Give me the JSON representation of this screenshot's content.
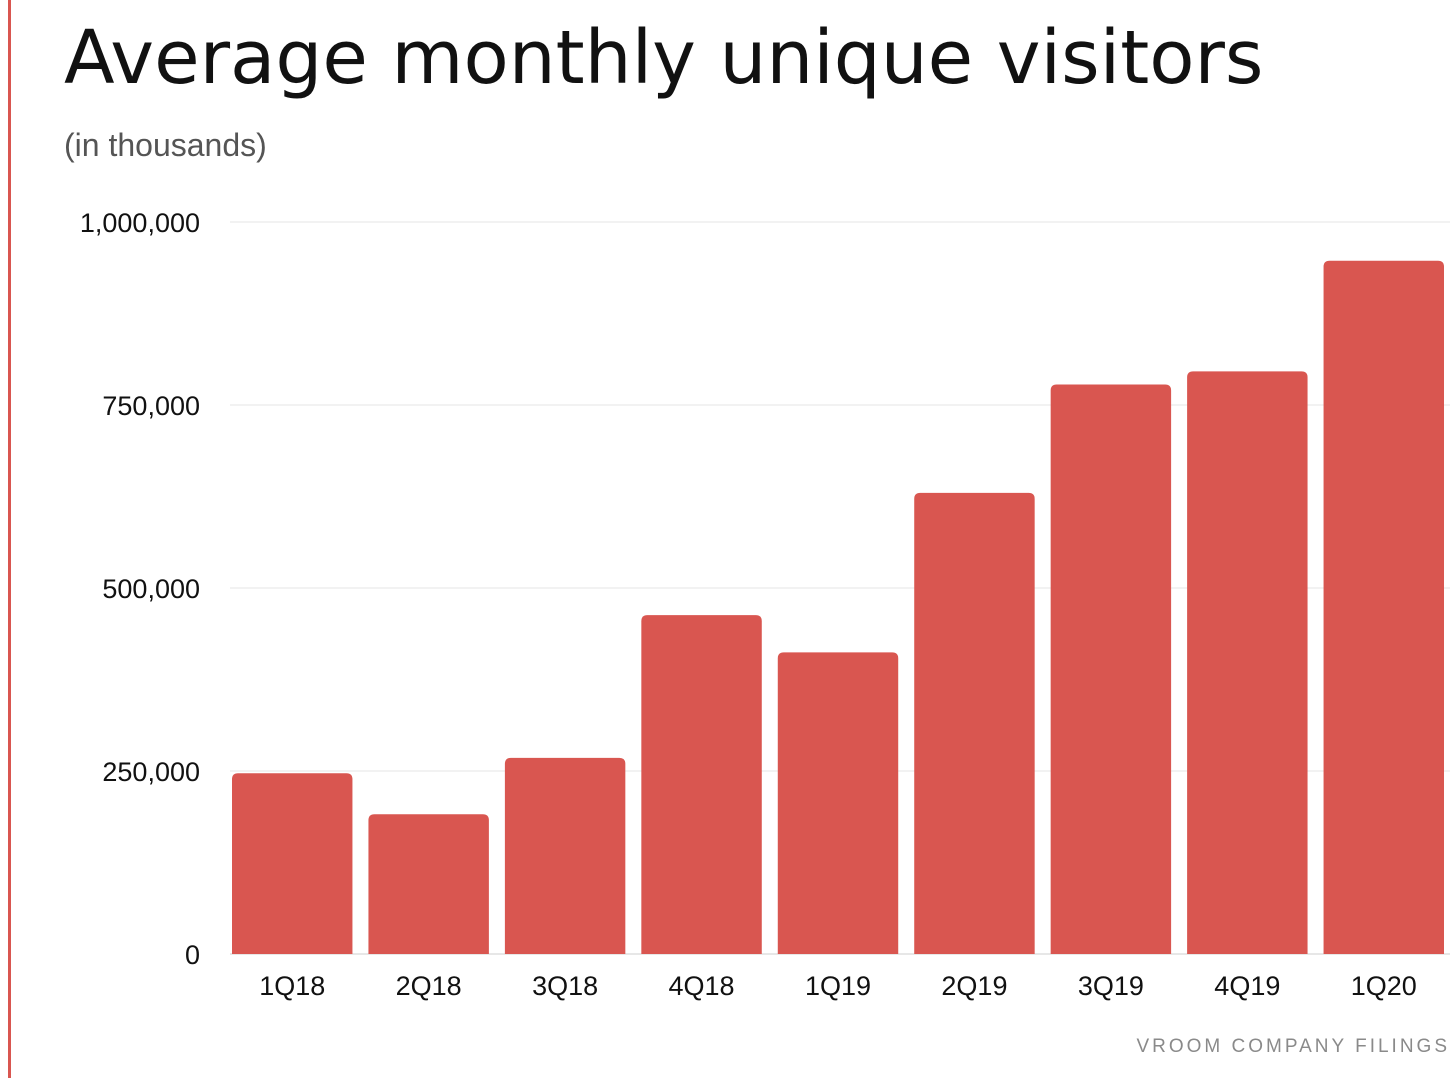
{
  "title": "Average monthly unique visitors",
  "subtitle": "(in thousands)",
  "source": "VROOM COMPANY FILINGS",
  "colors": {
    "bar": "#d95650",
    "accent": "#d95650",
    "grid": "#e6e6e6",
    "axis": "#cfcfcf"
  },
  "chart_data": {
    "type": "bar",
    "categories": [
      "1Q18",
      "2Q18",
      "3Q18",
      "4Q18",
      "1Q19",
      "2Q19",
      "3Q19",
      "4Q19",
      "1Q20"
    ],
    "values": [
      247000,
      191000,
      268000,
      463000,
      412000,
      630000,
      778000,
      796000,
      947000
    ],
    "title": "Average monthly unique visitors",
    "subtitle": "(in thousands)",
    "xlabel": "",
    "ylabel": "",
    "ylim": [
      0,
      1000000
    ],
    "yticks": [
      0,
      250000,
      500000,
      750000,
      1000000
    ],
    "ytick_labels": [
      "0",
      "250,000",
      "500,000",
      "750,000",
      "1,000,000"
    ],
    "grid": true,
    "legend": "none"
  }
}
